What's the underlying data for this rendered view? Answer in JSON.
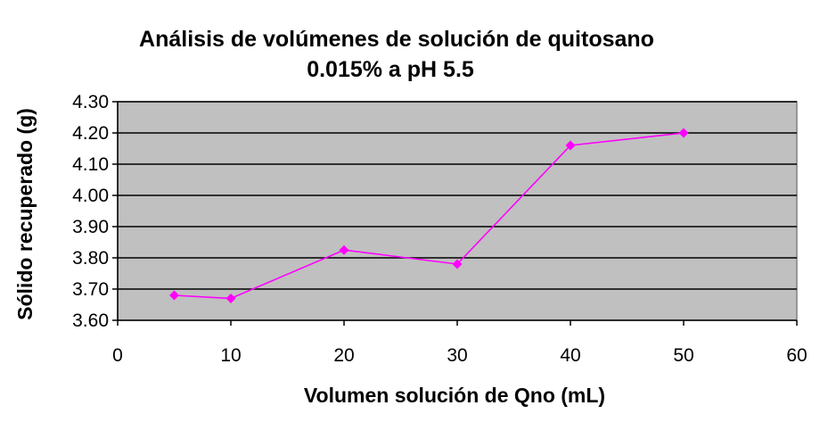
{
  "chart_data": {
    "type": "line",
    "title": [
      "Análisis de volúmenes de solución de quitosano",
      "0.015% a pH 5.5"
    ],
    "xlabel": "Volumen solución de Qno (mL)",
    "ylabel": "Sólido recuperado (g)",
    "xlim": [
      0,
      60
    ],
    "ylim": [
      3.6,
      4.3
    ],
    "x_ticks": [
      "0",
      "10",
      "20",
      "30",
      "40",
      "50",
      "60"
    ],
    "y_ticks": [
      "3.60",
      "3.70",
      "3.80",
      "3.90",
      "4.00",
      "4.10",
      "4.20",
      "4.30"
    ],
    "grid": "horizontal",
    "legend": "none",
    "plot_background": "#c0c0c0",
    "series": [
      {
        "color": "#ff00ff",
        "marker": "diamond",
        "x": [
          5,
          10,
          20,
          30,
          40,
          50
        ],
        "y": [
          3.68,
          3.67,
          3.825,
          3.78,
          4.16,
          4.2
        ]
      }
    ]
  }
}
